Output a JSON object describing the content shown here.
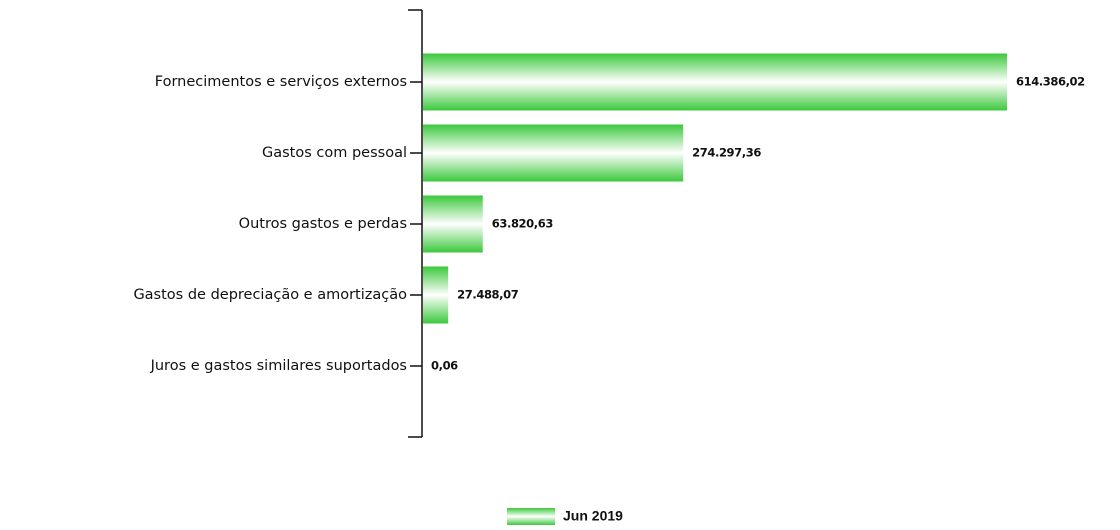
{
  "chart_data": {
    "type": "hbar",
    "categories": [
      "Fornecimentos e serviços externos",
      "Gastos com pessoal",
      "Outros gastos e perdas",
      "Gastos de depreciação e amortização",
      "Juros e gastos similares suportados"
    ],
    "series": [
      {
        "name": "Jun 2019",
        "color": "#3cc83c",
        "values": [
          614386.02,
          274297.36,
          63820.63,
          27488.07,
          0.06
        ],
        "value_labels": [
          "614.386,02",
          "274.297,36",
          "63.820,63",
          "27.488,07",
          "0,06"
        ]
      }
    ],
    "legend": "bottom"
  }
}
